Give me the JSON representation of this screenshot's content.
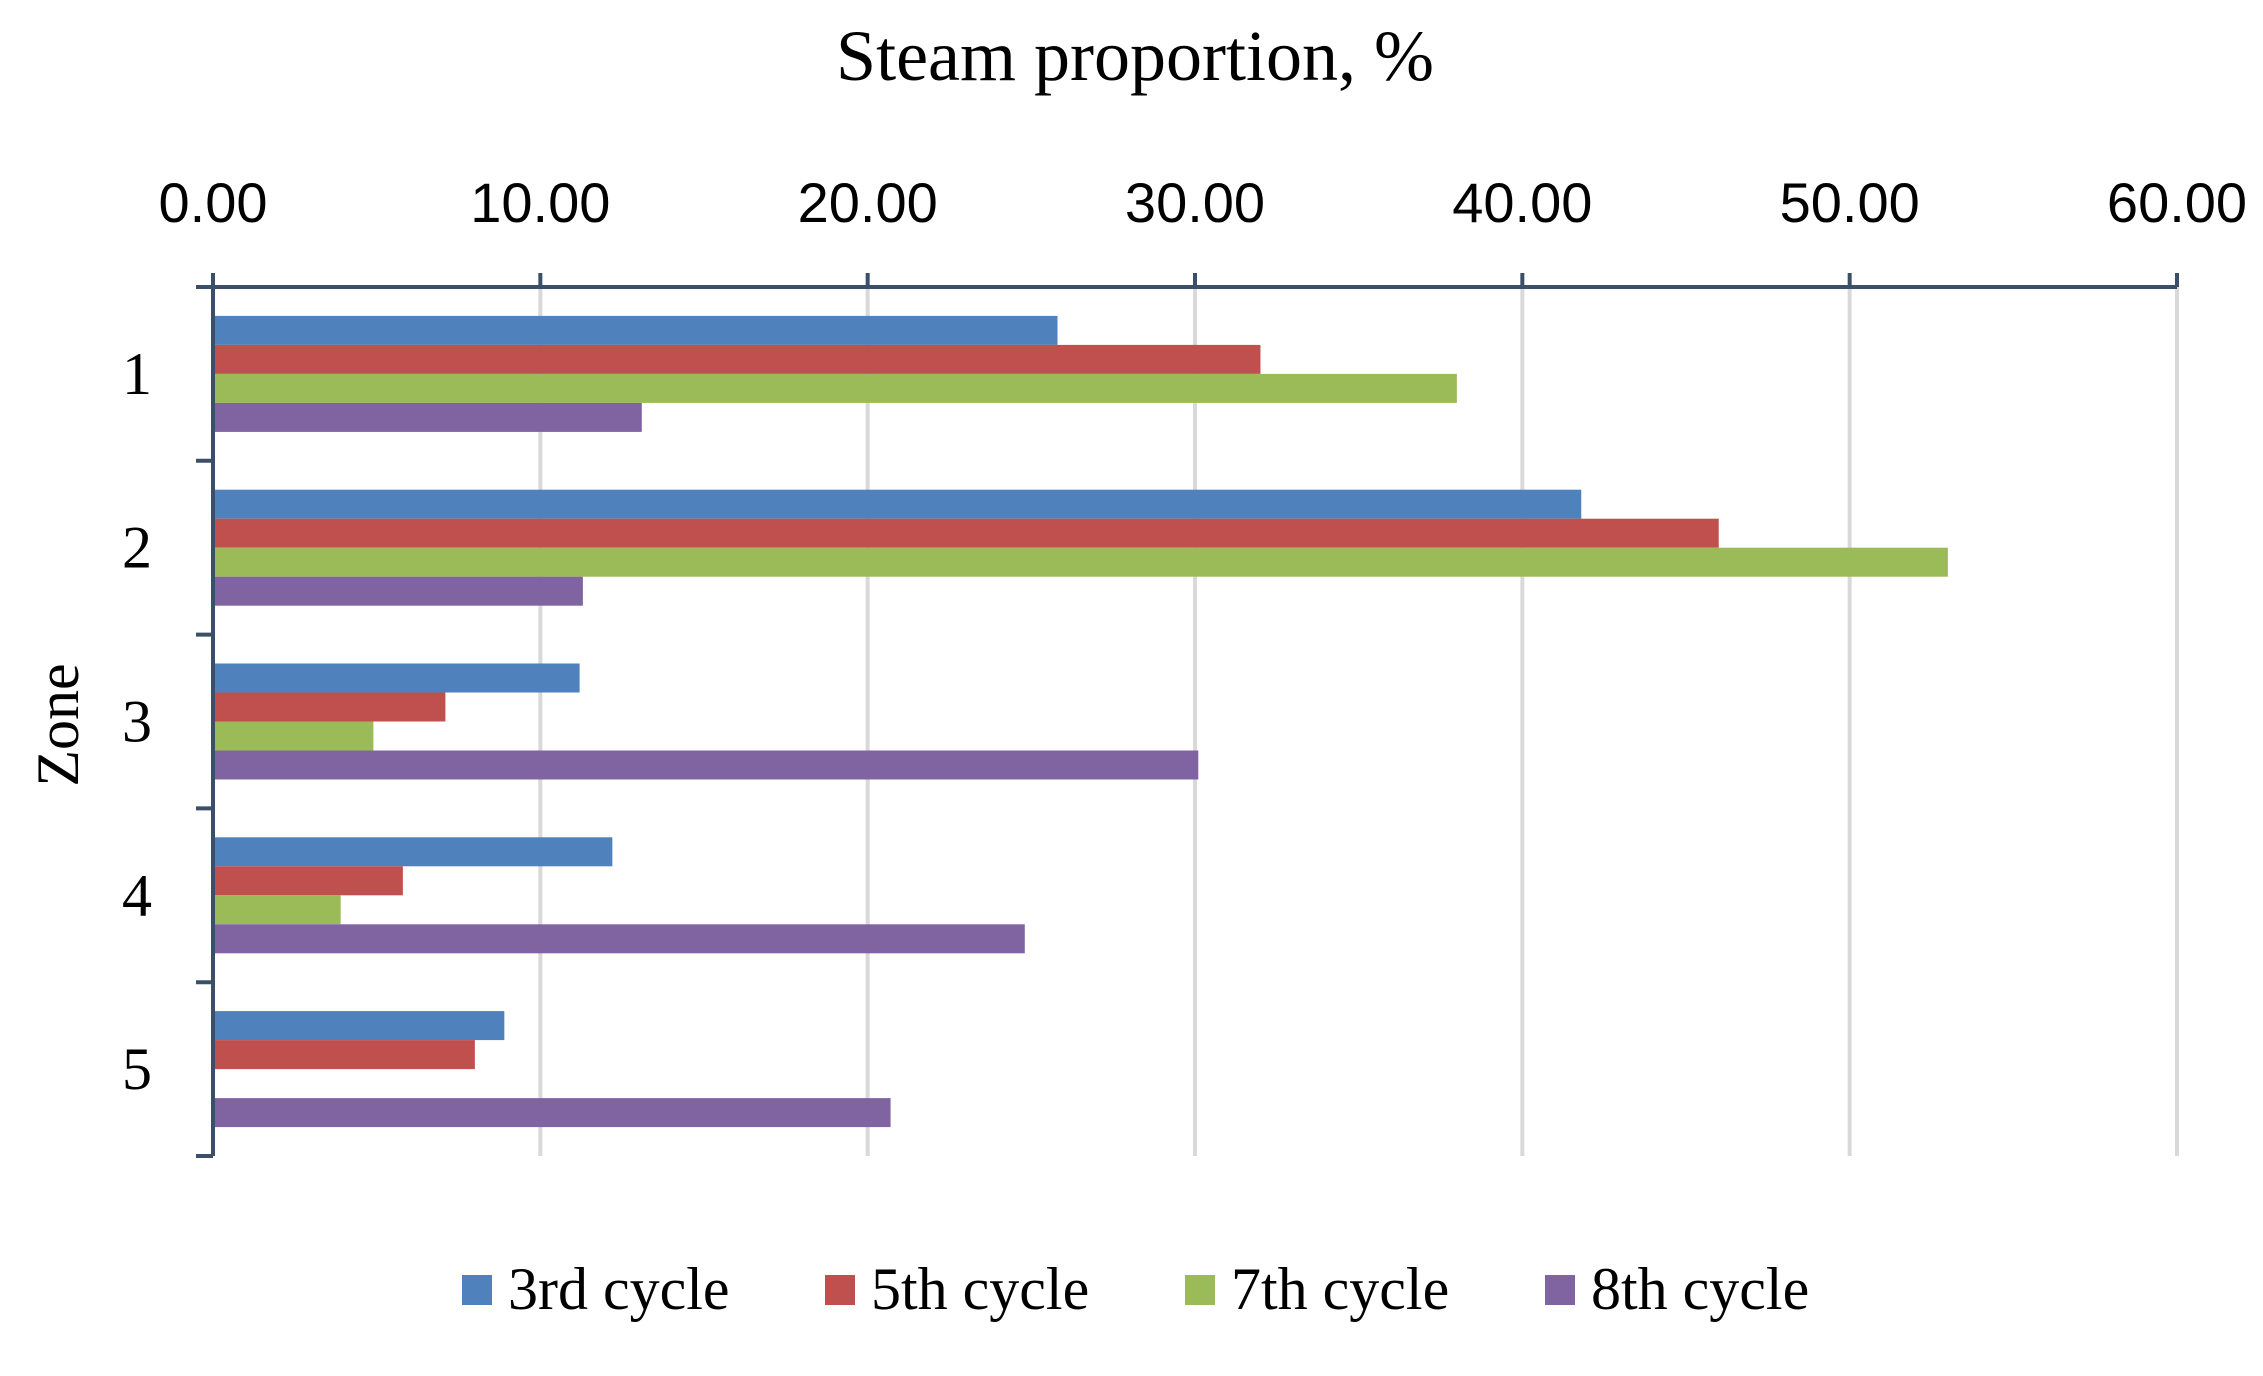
{
  "chart_data": {
    "type": "bar",
    "orientation": "horizontal",
    "title": "Steam proportion, %",
    "xlabel": "Steam proportion, %",
    "ylabel": "Zone",
    "xlim": [
      0,
      60
    ],
    "xticks": [
      "0.00",
      "10.00",
      "20.00",
      "30.00",
      "40.00",
      "50.00",
      "60.00"
    ],
    "xtick_values": [
      0,
      10,
      20,
      30,
      40,
      50,
      60
    ],
    "x_axis_position": "top",
    "grid": "vertical",
    "legend_position": "bottom",
    "categories": [
      "1",
      "2",
      "3",
      "4",
      "5"
    ],
    "series": [
      {
        "name": "3rd cycle",
        "color": "#4F81BD",
        "values": [
          25.8,
          41.8,
          11.2,
          12.2,
          8.9
        ]
      },
      {
        "name": "5th cycle",
        "color": "#C0504D",
        "values": [
          32.0,
          46.0,
          7.1,
          5.8,
          8.0
        ]
      },
      {
        "name": "7th cycle",
        "color": "#9BBB59",
        "values": [
          38.0,
          53.0,
          4.9,
          3.9,
          0
        ]
      },
      {
        "name": "8th cycle",
        "color": "#8064A2",
        "values": [
          13.1,
          11.3,
          30.1,
          24.8,
          20.7
        ]
      }
    ]
  },
  "colors": {
    "axis": "#3B5068",
    "grid": "#D9D9D9"
  }
}
